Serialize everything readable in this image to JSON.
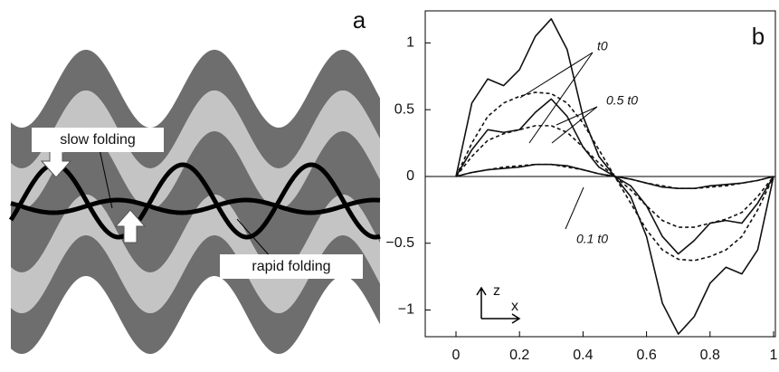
{
  "panel_a": {
    "label": "a",
    "annotations": [
      "slow folding",
      "rapid folding"
    ]
  },
  "chart_data": {
    "type": "line",
    "label": "b",
    "x": [
      0,
      0.05,
      0.1,
      0.15,
      0.2,
      0.25,
      0.3,
      0.35,
      0.4,
      0.45,
      0.5,
      0.55,
      0.6,
      0.65,
      0.7,
      0.75,
      0.8,
      0.85,
      0.9,
      0.95,
      1
    ],
    "series": [
      {
        "color": "#111",
        "dash": false,
        "values": [
          0,
          0.55,
          0.73,
          0.68,
          0.8,
          1.05,
          1.18,
          0.95,
          0.45,
          0.15,
          0,
          -0.15,
          -0.45,
          -0.95,
          -1.18,
          -1.05,
          -0.8,
          -0.68,
          -0.73,
          -0.55,
          0
        ]
      },
      {
        "color": "#111",
        "dash": true,
        "values": [
          0,
          0.25,
          0.45,
          0.55,
          0.6,
          0.63,
          0.62,
          0.55,
          0.4,
          0.2,
          0,
          -0.2,
          -0.4,
          -0.55,
          -0.62,
          -0.63,
          -0.6,
          -0.55,
          -0.45,
          -0.25,
          0
        ]
      },
      {
        "color": "#111",
        "dash": false,
        "values": [
          0,
          0.2,
          0.35,
          0.33,
          0.35,
          0.48,
          0.58,
          0.45,
          0.22,
          0.07,
          0,
          -0.07,
          -0.22,
          -0.45,
          -0.58,
          -0.48,
          -0.35,
          -0.33,
          -0.35,
          -0.2,
          0
        ]
      },
      {
        "color": "#111",
        "dash": true,
        "values": [
          0,
          0.15,
          0.27,
          0.32,
          0.35,
          0.38,
          0.38,
          0.33,
          0.22,
          0.1,
          0,
          -0.1,
          -0.22,
          -0.33,
          -0.38,
          -0.38,
          -0.35,
          -0.32,
          -0.27,
          -0.15,
          0
        ]
      },
      {
        "color": "#111",
        "dash": false,
        "values": [
          0,
          0.03,
          0.05,
          0.06,
          0.07,
          0.09,
          0.09,
          0.08,
          0.05,
          0.02,
          0,
          -0.02,
          -0.05,
          -0.08,
          -0.09,
          -0.09,
          -0.07,
          -0.06,
          -0.05,
          -0.03,
          0
        ]
      },
      {
        "color": "#111",
        "dash": true,
        "values": [
          0,
          0.03,
          0.05,
          0.07,
          0.08,
          0.09,
          0.09,
          0.07,
          0.05,
          0.02,
          0,
          -0.02,
          -0.05,
          -0.07,
          -0.09,
          -0.09,
          -0.08,
          -0.07,
          -0.05,
          -0.03,
          0
        ]
      }
    ],
    "annotations": [
      "t0",
      "0.5 t0",
      "0.1 t0"
    ],
    "axis_symbols": [
      "z",
      "x"
    ],
    "xlim": [
      0,
      1
    ],
    "xticks": [
      0,
      0.2,
      0.4,
      0.6,
      0.8,
      1
    ],
    "ylim": [
      -1.2,
      1.24
    ],
    "yticks": [
      {
        "value": -1,
        "label": "−1"
      },
      {
        "value": -0.5,
        "label": "−0.5"
      },
      0,
      0.5,
      1
    ]
  }
}
